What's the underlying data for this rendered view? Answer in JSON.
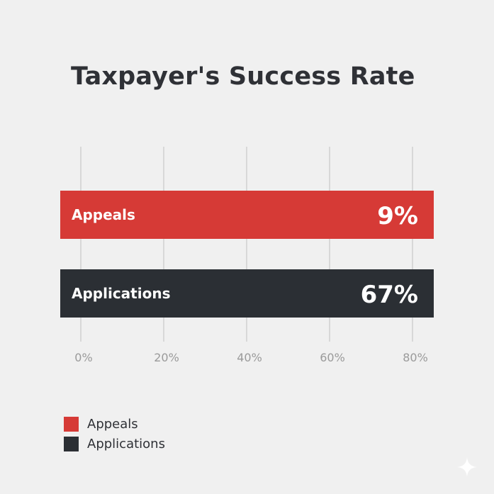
{
  "chart_data": {
    "type": "bar",
    "orientation": "horizontal",
    "title": "Taxpayer's Success Rate",
    "categories": [
      "Appeals",
      "Applications"
    ],
    "values": [
      9,
      67
    ],
    "value_labels": [
      "9%",
      "67%"
    ],
    "colors": [
      "#d63a36",
      "#2b2f34"
    ],
    "x_ticks": [
      "0%",
      "20%",
      "40%",
      "60%",
      "80%"
    ],
    "grid": true,
    "legend": {
      "position": "bottom-left",
      "entries": [
        {
          "label": "Appeals",
          "color": "#d63a36"
        },
        {
          "label": "Applications",
          "color": "#2b2f34"
        }
      ]
    }
  }
}
